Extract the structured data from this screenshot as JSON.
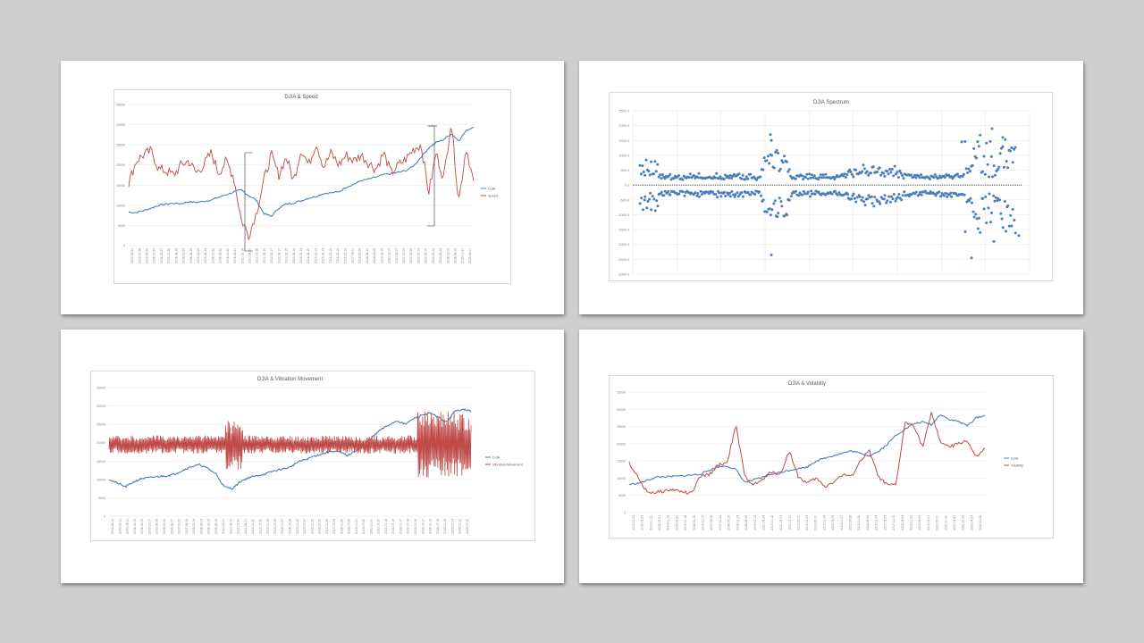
{
  "colors": {
    "djia": "#4a7ebb",
    "red": "#be4b48",
    "scatter": "#4a7ebb"
  },
  "chart_data": [
    {
      "id": "speed",
      "type": "line",
      "title": "DJIA & Speed",
      "ylim": [
        0,
        35000
      ],
      "yticks": [
        "0",
        "5000",
        "10000",
        "15000",
        "20000",
        "25000",
        "30000",
        "35000"
      ],
      "xticks": [
        "2002.08.30",
        "2003.02.28",
        "2003.08.29",
        "2004.02.27",
        "2004.08.27",
        "2005.02.25",
        "2005.08.26",
        "2006.02.24",
        "2006.08.25",
        "2007.02.23",
        "2007.08.24",
        "2008.02.22",
        "2008.08.22",
        "2009.02.20",
        "2009.08.21",
        "2010.02.19",
        "2010.08.20",
        "2011.02.18",
        "2011.08.19",
        "2012.02.17",
        "2012.08.17",
        "2013.02.15",
        "2013.08.16",
        "2014.02.14",
        "2014.08.15",
        "2015.02.13",
        "2015.08.14",
        "2016.02.12",
        "2016.08.12",
        "2017.02.10",
        "2017.08.11",
        "2018.02.09",
        "2018.08.10",
        "2019.02.08",
        "2019.08.09",
        "2020.02.07",
        "2020.08.07",
        "2021.02.05",
        "2021.08.06",
        "2022.02.04",
        "2022.08.05",
        "2023.02.03",
        "2023.08.04",
        "2024.02.02",
        "2024.08.02",
        "2025.01.31",
        "2025.08.01"
      ],
      "legend_position": "right",
      "series": [
        {
          "name": "DJIA",
          "color": "#4a7ebb",
          "values": [
            8300,
            8200,
            8700,
            9300,
            10000,
            10300,
            10500,
            10400,
            10900,
            10700,
            11000,
            11300,
            12000,
            12600,
            13300,
            13800,
            12400,
            11300,
            8000,
            7200,
            9300,
            10300,
            10600,
            11100,
            11800,
            12200,
            12900,
            13100,
            13300,
            14500,
            15200,
            16100,
            16500,
            17000,
            17600,
            17800,
            18200,
            18600,
            19800,
            22000,
            24200,
            25600,
            26300,
            27800,
            26000,
            28500,
            29500
          ]
        },
        {
          "name": "Speed",
          "color": "#be4b48",
          "values": [
            15500,
            21000,
            22500,
            23500,
            19000,
            18500,
            17500,
            20000,
            21000,
            18000,
            20000,
            23000,
            18000,
            21000,
            17000,
            6500,
            2500,
            8000,
            16000,
            22500,
            17500,
            22000,
            16000,
            24000,
            20000,
            25500,
            19500,
            23000,
            20000,
            22500,
            21000,
            22500,
            20500,
            19000,
            23000,
            18000,
            20000,
            21500,
            24000,
            25000,
            13000,
            23000,
            16500,
            31000,
            11000,
            24500,
            15500
          ]
        }
      ]
    },
    {
      "id": "spectrum",
      "type": "scatter",
      "title": "DJIA Spectrum",
      "ylim": [
        -3000,
        2500
      ],
      "yticks": [
        "-3000.0",
        "-2500.0",
        "-2000.0",
        "-1500.0",
        "-1000.0",
        "-500.0",
        "0.0",
        "500.0",
        "1000.0",
        "1500.0",
        "2000.0",
        "2500.0"
      ]
    },
    {
      "id": "vibration",
      "type": "line",
      "title": "DJIA & Vibration Movement",
      "ylim": [
        0,
        35000
      ],
      "yticks": [
        "0",
        "5000",
        "10000",
        "15000",
        "20000",
        "25000",
        "30000",
        "35000"
      ],
      "xticks": [
        "2002.08.12",
        "2003.02.11",
        "2003.08.11",
        "2004.02.09",
        "2004.08.09",
        "2005.02.07",
        "2005.08.08",
        "2006.02.06",
        "2006.08.07",
        "2007.02.05",
        "2007.08.06",
        "2008.02.04",
        "2008.08.04",
        "2009.02.02",
        "2009.08.03",
        "2010.02.01",
        "2010.08.02",
        "2011.01.31",
        "2011.08.01",
        "2012.01.30",
        "2012.07.30",
        "2013.01.28",
        "2013.07.29",
        "2014.01.27",
        "2014.07.28",
        "2015.01.26",
        "2015.07.27",
        "2016.01.25",
        "2016.07.25",
        "2017.01.23",
        "2017.07.24",
        "2018.01.22",
        "2018.07.23",
        "2019.01.21",
        "2019.07.22",
        "2020.01.20",
        "2020.07.20",
        "2021.01.18",
        "2021.07.19",
        "2022.01.17",
        "2022.07.18",
        "2023.01.16",
        "2023.07.17",
        "2024.01.15",
        "2024.07.15",
        "2025.01.13",
        "2025.07.14",
        "2026.01.12",
        "2026.07.13"
      ],
      "legend_position": "right",
      "series": [
        {
          "name": "DJIA",
          "color": "#4a7ebb"
        },
        {
          "name": "Vibration Movement",
          "color": "#be4b48"
        }
      ]
    },
    {
      "id": "volatility",
      "type": "line",
      "title": "DJIA & Volatility",
      "ylim": [
        0,
        35000
      ],
      "yticks": [
        "0",
        "5000",
        "10000",
        "15000",
        "20000",
        "25000",
        "30000",
        "35000"
      ],
      "xticks": [
        "2002.11.22",
        "2003.05.23",
        "2003.11.21",
        "2004.05.21",
        "2004.11.19",
        "2005.05.20",
        "2005.11.18",
        "2006.05.19",
        "2006.11.17",
        "2007.05.18",
        "2007.11.16",
        "2008.05.16",
        "2008.11.14",
        "2009.05.15",
        "2009.11.13",
        "2010.05.14",
        "2010.11.12",
        "2011.05.13",
        "2011.11.11",
        "2012.05.11",
        "2012.11.09",
        "2013.05.10",
        "2013.11.08",
        "2014.05.09",
        "2014.11.07",
        "2015.05.08",
        "2015.11.06",
        "2016.05.06",
        "2016.11.04",
        "2017.05.05",
        "2017.11.03",
        "2018.05.04",
        "2018.11.02",
        "2019.05.03",
        "2019.11.01",
        "2020.05.01",
        "2020.10.30",
        "2021.04.30",
        "2021.10.29",
        "2022.04.29",
        "2022.10.28"
      ],
      "legend_position": "right",
      "series": [
        {
          "name": "DJIA",
          "color": "#4a7ebb",
          "values": [
            8200,
            8500,
            9300,
            10300,
            10400,
            10500,
            10700,
            10900,
            11200,
            12300,
            13300,
            13500,
            12500,
            8800,
            9500,
            10200,
            11200,
            11700,
            12300,
            12800,
            13200,
            15000,
            15800,
            16600,
            17300,
            17900,
            17200,
            16500,
            17700,
            19800,
            22500,
            24200,
            25800,
            26300,
            25500,
            28600,
            27000,
            26500,
            25200,
            27500,
            28200
          ]
        },
        {
          "name": "Volatility",
          "color": "#be4b48",
          "values": [
            14500,
            10000,
            6000,
            5800,
            6300,
            6700,
            6000,
            5500,
            10500,
            11000,
            13800,
            14500,
            25300,
            10500,
            8000,
            9500,
            12000,
            11000,
            18000,
            10500,
            8500,
            10000,
            7500,
            9000,
            11000,
            10500,
            15000,
            18000,
            10500,
            8000,
            8000,
            26000,
            25500,
            19000,
            29000,
            20500,
            19000,
            20000,
            21000,
            16000,
            18500
          ]
        }
      ]
    }
  ]
}
